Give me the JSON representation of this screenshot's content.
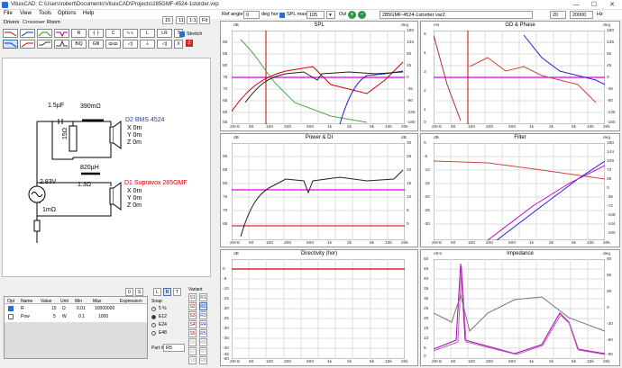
{
  "window": {
    "title": "VituixCAD: C:\\Users\\robert\\Documents\\VituixCAD\\Projects\\285GMF-4524-1storder.vxp",
    "min": "—",
    "max": "☐",
    "close": "✕"
  },
  "menu": [
    "File",
    "View",
    "Tools",
    "Options",
    "Help"
  ],
  "tabs": [
    "Drivers",
    "Crossover",
    "Room"
  ],
  "toolbar": {
    "row1": [
      "",
      "",
      "",
      "",
      "",
      "R",
      "",
      "C",
      "",
      "L",
      "LR",
      "T"
    ],
    "row2": [
      "",
      "",
      "",
      "",
      "BiQ",
      "Gfil",
      "",
      "",
      "",
      "",
      "Z",
      "X"
    ],
    "stretch": "Stretch"
  },
  "zoom": {
    "v1": "15",
    "v2": "11",
    "v3": "1:1",
    "fit": "Fit"
  },
  "top": {
    "ref_angle_label": "Ref angle",
    "ref_angle": "0",
    "deg_hor": "deg hor",
    "spl_max_label": "SPL max",
    "spl_max": "105",
    "ovl_label": "Ovl",
    "name": "285GMF-4524-1storder var2",
    "fmin": "20",
    "fmax": "20000",
    "hz": "Hz"
  },
  "schematic": {
    "c1": "1.5µF",
    "r1": "15Ω",
    "l_top": "390mΩ",
    "d2": "D2 BMS 4524",
    "d2x": "X 0m",
    "d2y": "Y 0m",
    "d2z": "Z 0m",
    "l1": "820µH",
    "r2": "1.3Ω",
    "gen_v": "2.83V",
    "gen_r": "1mΩ",
    "d1": "D1 Supravox 285GMF",
    "d1x": "X 0m",
    "d1y": "Y 0m",
    "d1z": "Z 0m"
  },
  "table": {
    "headers": [
      "Opt",
      "Name",
      "Value",
      "Unit",
      "Min",
      "Max",
      "Expression"
    ],
    "rows": [
      [
        "",
        "R",
        "15",
        "Ω",
        "0.01",
        "10000000",
        ""
      ],
      [
        "",
        "Pow",
        "5",
        "W",
        "0.1",
        "1000",
        ""
      ]
    ]
  },
  "props": {
    "buttons": [
      "0",
      "S",
      "L",
      "R",
      "T"
    ],
    "snap": "Snap",
    "snap_opts": [
      "5 %",
      "E12",
      "E24",
      "E48"
    ],
    "part": "Part #",
    "part_val": "R5"
  },
  "variant": {
    "label": "Variant",
    "s": [
      "S1",
      "S2",
      "S3",
      "S4",
      "S5",
      "S6",
      "S7",
      "S8"
    ],
    "r": [
      "R1",
      "R2",
      "R3",
      "R4",
      "R5",
      "R6",
      "R7",
      "R8"
    ]
  },
  "charts": {
    "spl": {
      "title": "SPL",
      "yl": "dB",
      "yr": "deg",
      "left": [
        "",
        "90",
        "85",
        "80",
        "75",
        "70",
        "65",
        "60",
        "55",
        "50"
      ],
      "right": [
        "180",
        "135",
        "90",
        "45",
        "0",
        "-45",
        "-90",
        "-135",
        "-180"
      ]
    },
    "gd": {
      "title": "GD & Phase",
      "yl": "ms",
      "yr": "deg",
      "left": [
        "5",
        "4",
        "3",
        "2",
        "1",
        "0"
      ],
      "right": [
        "180",
        "135",
        "90",
        "45",
        "0",
        "-45",
        "-90",
        "-135",
        "-180"
      ]
    },
    "power": {
      "title": "Power & DI",
      "yl": "dB",
      "yr": "dB",
      "left": [
        "",
        "90",
        "85",
        "80",
        "75",
        "70",
        "65"
      ],
      "right": [
        "30",
        "25",
        "20",
        "15",
        "10",
        "5",
        "0"
      ]
    },
    "filter": {
      "title": "Filter",
      "yl": "dB",
      "yr": "deg",
      "left": [
        "0",
        "-5",
        "-10",
        "-15",
        "-20",
        "-25",
        "-30"
      ],
      "right": [
        "180",
        "144",
        "108",
        "72",
        "36",
        "0",
        "-36",
        "-72",
        "-108",
        "-144",
        "-180"
      ]
    },
    "dir": {
      "title": "Directivity (hor)",
      "yl": "dB",
      "left": [
        "0",
        "-5",
        "-10",
        "-15",
        "-20",
        "-25",
        "-30",
        "-35",
        "-40",
        "-45",
        "-50"
      ]
    },
    "imp": {
      "title": "Impedance",
      "yl": "ohm",
      "yr": "deg",
      "left": [
        "50",
        "45",
        "40",
        "35",
        "30",
        "25",
        "20",
        "15",
        "10",
        "5",
        "0"
      ],
      "right": [
        "90",
        "60",
        "30",
        "0",
        "-30",
        "-60",
        "-90"
      ]
    },
    "xticks": [
      "20Hz",
      "50",
      "100",
      "200",
      "500",
      "1k",
      "2k",
      "5k",
      "10k",
      "20k"
    ]
  }
}
